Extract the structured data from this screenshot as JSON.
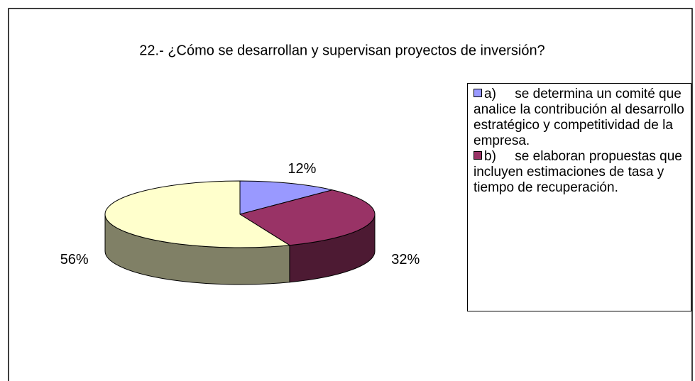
{
  "chart_data": {
    "type": "pie3d",
    "title": "22.- ¿Cómo se desarrollan y supervisan proyectos de inversión?",
    "categories": [
      "a)     se determina un comité que analice la contribución al desarrollo estratégico y competitividad de la empresa.",
      "b)     se elaboran propuestas que incluyen estimaciones de tasa y tiempo de recuperación.",
      null
    ],
    "values": [
      12,
      32,
      56
    ],
    "value_labels": [
      "12%",
      "32%",
      "56%"
    ],
    "colors": [
      "#9999ff",
      "#993366",
      "#ffffcc"
    ],
    "legend": "right"
  }
}
